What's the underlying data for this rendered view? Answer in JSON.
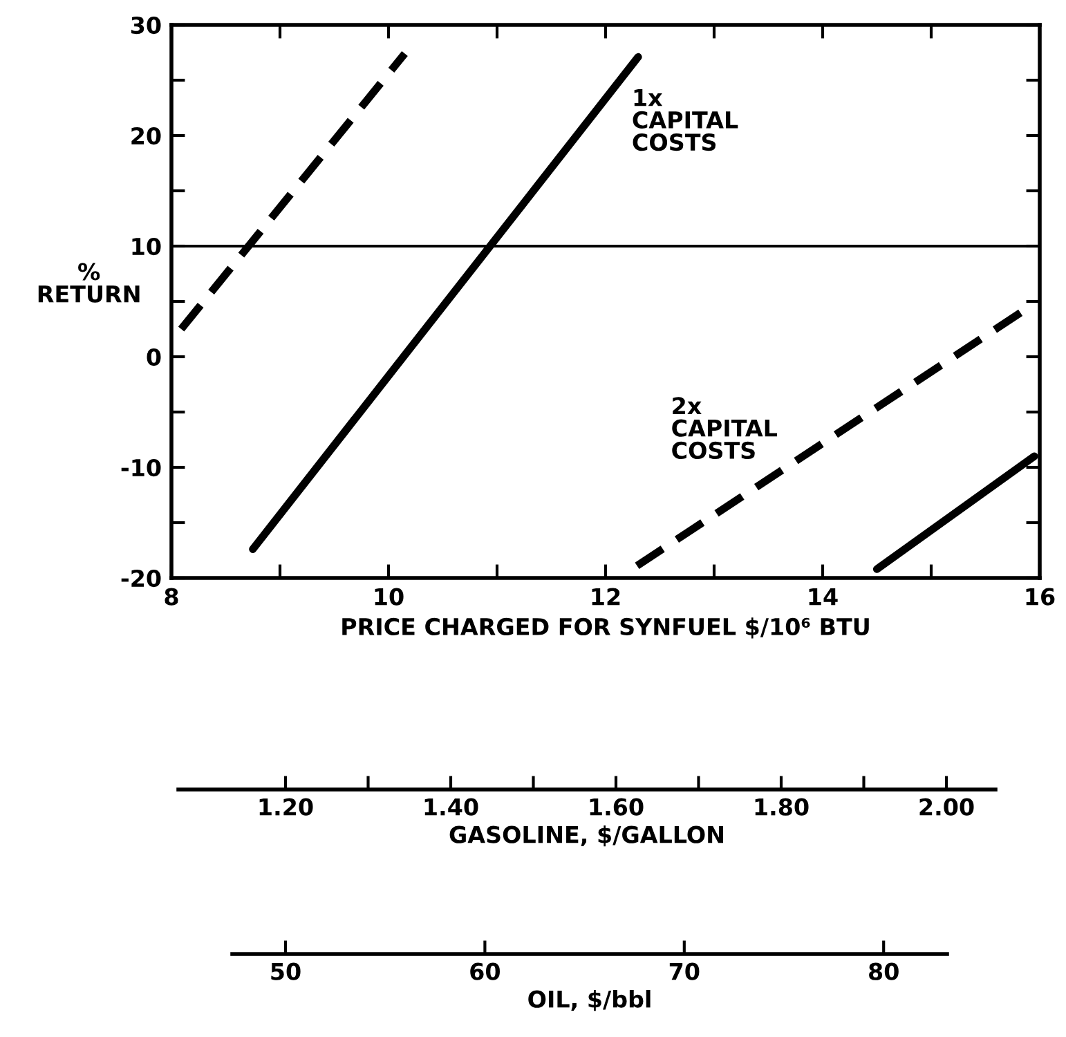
{
  "chart_data": {
    "type": "line",
    "xlabel": "PRICE CHARGED FOR SYNFUEL $/10⁶ BTU",
    "ylabel": "%\nRETURN",
    "xlim": [
      8,
      16
    ],
    "xticks": [
      8,
      {
        "value": 9,
        "label": null
      },
      10,
      {
        "value": 11,
        "label": null
      },
      12,
      {
        "value": 13,
        "label": null
      },
      14,
      {
        "value": 15,
        "label": null
      },
      16
    ],
    "ylim": [
      -20,
      30
    ],
    "yticks": [
      -20,
      {
        "value": -15,
        "label": null
      },
      -10,
      {
        "value": -5,
        "label": null
      },
      0,
      {
        "value": 5,
        "label": null
      },
      10,
      {
        "value": 15,
        "label": null
      },
      20,
      {
        "value": 25,
        "label": null
      },
      30
    ],
    "grid": false,
    "legend": false,
    "marker": "none",
    "series": [
      {
        "color": "#000000",
        "line_style": "dashed",
        "x": [
          8.09,
          10.15
        ],
        "values": [
          2.5,
          27.4
        ]
      },
      {
        "color": "#000000",
        "line_style": "solid",
        "x": [
          8.75,
          12.3
        ],
        "values": [
          -17.4,
          27.1
        ]
      },
      {
        "color": "#000000",
        "line_style": "dashed",
        "x": [
          12.29,
          15.95
        ],
        "values": [
          -18.9,
          4.8
        ]
      },
      {
        "color": "#000000",
        "line_style": "solid",
        "x": [
          14.5,
          15.95
        ],
        "values": [
          -19.2,
          -9
        ]
      }
    ],
    "ref_lines": [
      {
        "axis": "y",
        "value": 10,
        "label": null,
        "color": "#000000",
        "line_style": "solid"
      }
    ],
    "annotations": [
      {
        "text": "1x\nCAPITAL\nCOSTS",
        "x": 12.1,
        "y": 24.6
      },
      {
        "text": "2x\nCAPITAL\nCOSTS",
        "x": 13.55,
        "y": -10.7
      },
      "1.20",
      "1.40",
      "1.60",
      "1.80",
      "2.00",
      "GASOLINE, $/GALLON",
      "50",
      "60",
      "70",
      "80",
      "OIL, $/bbl"
    ]
  }
}
